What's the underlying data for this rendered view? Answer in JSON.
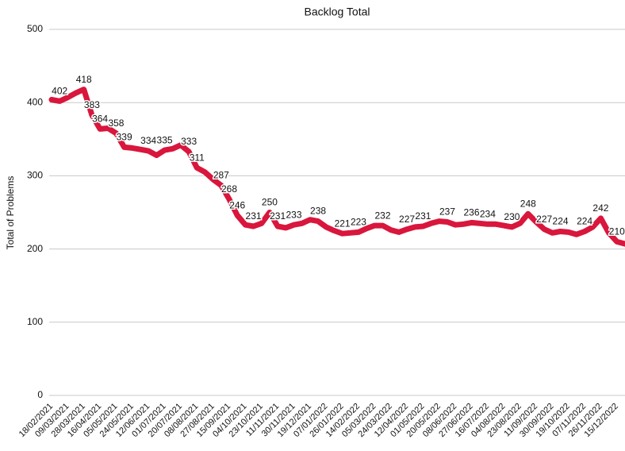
{
  "chart_data": {
    "type": "line",
    "title": "Backlog Total",
    "y_label": "Total of Problems",
    "categories": [
      "18/02/2021",
      null,
      "09/03/2021",
      null,
      "28/03/2021",
      null,
      "16/04/2021",
      null,
      "05/05/2021",
      null,
      "24/05/2021",
      null,
      "12/06/2021",
      null,
      "01/07/2021",
      null,
      "20/07/2021",
      null,
      "08/08/2021",
      null,
      "27/08/2021",
      null,
      "15/09/2021",
      null,
      "04/10/2021",
      null,
      "23/10/2021",
      null,
      "11/11/2021",
      null,
      "30/11/2021",
      null,
      "19/12/2021",
      null,
      "07/01/2022",
      null,
      "26/01/2022",
      null,
      "14/02/2022",
      null,
      "05/03/2022",
      null,
      "24/03/2022",
      null,
      "12/04/2022",
      null,
      "01/05/2022",
      null,
      "20/05/2022",
      null,
      "08/06/2022",
      null,
      "27/06/2022",
      null,
      "16/07/2022",
      null,
      "04/08/2022",
      null,
      "23/08/2022",
      null,
      "11/09/2022",
      null,
      "30/09/2022",
      null,
      "19/10/2022",
      null,
      "07/11/2022",
      null,
      "26/11/2022",
      null,
      "15/12/2022",
      null
    ],
    "series": [
      {
        "name": "Backlog",
        "color": "#d9163c",
        "values": [
          404,
          402,
          407,
          413,
          418,
          383,
          364,
          365,
          358,
          339,
          338,
          336,
          334,
          328,
          335,
          337,
          342,
          333,
          311,
          305,
          295,
          287,
          268,
          246,
          233,
          231,
          235,
          250,
          231,
          229,
          233,
          235,
          240,
          238,
          230,
          225,
          221,
          222,
          223,
          228,
          232,
          232,
          226,
          223,
          227,
          230,
          231,
          235,
          238,
          237,
          233,
          234,
          236,
          235,
          234,
          234,
          232,
          230,
          235,
          248,
          237,
          227,
          222,
          224,
          223,
          220,
          224,
          230,
          242,
          222,
          210,
          207
        ],
        "value_labels": [
          null,
          "402",
          null,
          null,
          "418",
          "383",
          "364",
          null,
          "358",
          "339",
          null,
          null,
          "334",
          null,
          "335",
          null,
          null,
          "333",
          "311",
          null,
          null,
          "287",
          "268",
          "246",
          null,
          "231",
          null,
          "250",
          "231",
          null,
          "233",
          null,
          null,
          "238",
          null,
          null,
          "221",
          null,
          "223",
          null,
          null,
          "232",
          null,
          null,
          "227",
          null,
          "231",
          null,
          null,
          "237",
          null,
          null,
          "236",
          null,
          "234",
          null,
          null,
          "230",
          null,
          "248",
          null,
          "227",
          null,
          "224",
          null,
          null,
          "224",
          null,
          "242",
          null,
          "210",
          null
        ]
      }
    ],
    "ylim": [
      0,
      500
    ],
    "yticks": [
      0,
      100,
      200,
      300,
      400,
      500
    ],
    "grid": true
  }
}
